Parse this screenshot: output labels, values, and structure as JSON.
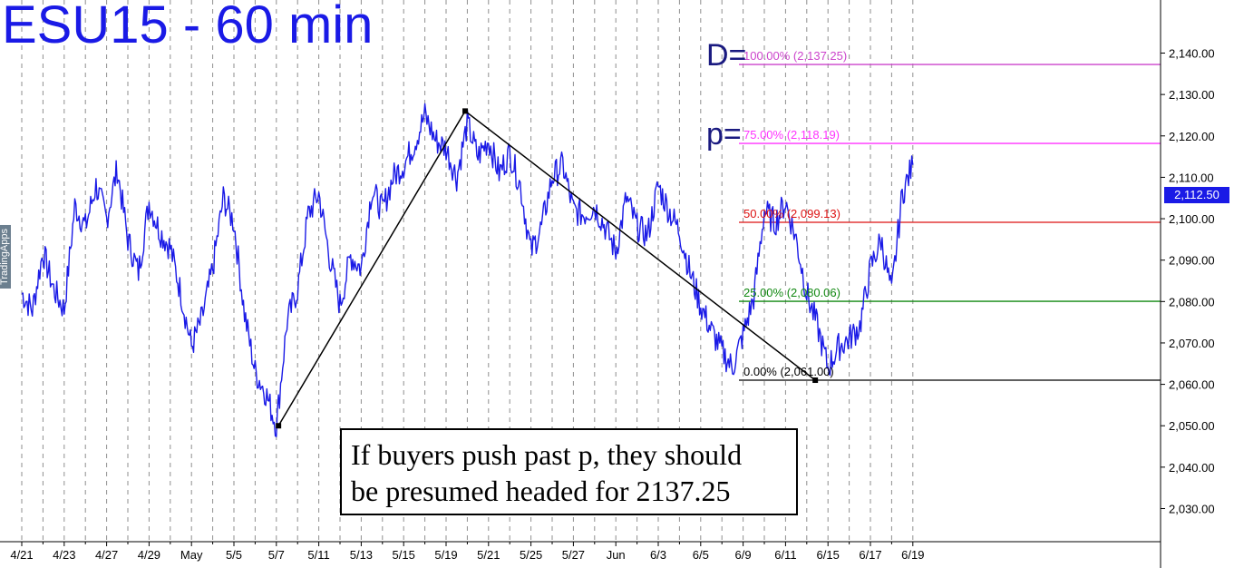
{
  "title": "ESU15 - 60 min",
  "logo_text": "TradingApps",
  "note": {
    "line1": "If buyers push past p, they should",
    "line2": "be presumed headed for 2137.25"
  },
  "last_price": "2,112.50",
  "chart_data": {
    "type": "line",
    "title": "ESU15 - 60 min",
    "ylim": [
      2022,
      2148
    ],
    "grid": "vertical-dashed",
    "y_ticks": [
      "2,030.00",
      "2,040.00",
      "2,050.00",
      "2,060.00",
      "2,070.00",
      "2,080.00",
      "2,090.00",
      "2,100.00",
      "2,110.00",
      "2,120.00",
      "2,130.00",
      "2,140.00"
    ],
    "y_tick_values": [
      2030,
      2040,
      2050,
      2060,
      2070,
      2080,
      2090,
      2100,
      2110,
      2120,
      2130,
      2140
    ],
    "x_ticks": [
      "4/21",
      "4/23",
      "4/27",
      "4/29",
      "May",
      "5/5",
      "5/7",
      "5/11",
      "5/13",
      "5/15",
      "5/19",
      "5/21",
      "5/25",
      "5/27",
      "Jun",
      "6/3",
      "6/5",
      "6/9",
      "6/11",
      "6/15",
      "6/17",
      "6/19"
    ],
    "x_tick_index": [
      0,
      2,
      4,
      6,
      8,
      10,
      12,
      14,
      16,
      18,
      20,
      22,
      24,
      26,
      28,
      30,
      32,
      34,
      36,
      38,
      40,
      42
    ],
    "series": [
      {
        "color": "#1a1ae6",
        "x": [
          0,
          0.5,
          1,
          1.5,
          2,
          2.5,
          3,
          3.5,
          4,
          4.5,
          5,
          5.5,
          6,
          6.5,
          7,
          7.5,
          8,
          8.5,
          9,
          9.5,
          10,
          10.5,
          11,
          11.5,
          12,
          12.5,
          13,
          13.5,
          14,
          14.5,
          15,
          15.5,
          16,
          16.5,
          17,
          17.5,
          18,
          18.5,
          19,
          19.5,
          20,
          20.5,
          21,
          21.5,
          22,
          22.5,
          23,
          23.5,
          24,
          24.5,
          25,
          25.5,
          26,
          26.5,
          27,
          27.5,
          28,
          28.5,
          29,
          29.5,
          30,
          30.5,
          31,
          31.5,
          32,
          32.5,
          33,
          33.5,
          34,
          34.5,
          35,
          35.5,
          36,
          36.5,
          37,
          37.5,
          38,
          38.5,
          39,
          39.5,
          40,
          40.5,
          41,
          41.5,
          42
        ],
        "values": [
          2082,
          2078,
          2092,
          2083,
          2078,
          2103,
          2098,
          2108,
          2100,
          2112,
          2095,
          2087,
          2104,
          2097,
          2093,
          2082,
          2069,
          2076,
          2088,
          2105,
          2099,
          2077,
          2063,
          2058,
          2050,
          2075,
          2083,
          2101,
          2106,
          2091,
          2079,
          2091,
          2088,
          2107,
          2102,
          2110,
          2113,
          2118,
          2125,
          2119,
          2117,
          2110,
          2123,
          2115,
          2119,
          2111,
          2116,
          2108,
          2092,
          2098,
          2110,
          2113,
          2102,
          2101,
          2103,
          2098,
          2092,
          2105,
          2098,
          2096,
          2108,
          2102,
          2097,
          2087,
          2079,
          2073,
          2068,
          2064,
          2072,
          2081,
          2102,
          2099,
          2104,
          2095,
          2082,
          2074,
          2064,
          2069,
          2071,
          2074,
          2088,
          2095,
          2082,
          2106,
          2113
        ]
      }
    ],
    "zigzag": [
      {
        "x": 12.1,
        "y": 2050
      },
      {
        "x": 20.9,
        "y": 2126
      },
      {
        "x": 37.4,
        "y": 2061
      }
    ],
    "fib_levels": [
      {
        "tag": "D=",
        "label": "100.00% (2,137.25)",
        "value": 2137.25,
        "color": "#cc44cc"
      },
      {
        "tag": "p=",
        "label": "75.00% (2,118.19)",
        "value": 2118.19,
        "color": "#ff33ff"
      },
      {
        "tag": "",
        "label": "50.00% (2,099.13)",
        "value": 2099.13,
        "color": "#dd1111"
      },
      {
        "tag": "",
        "label": "25.00% (2,080.06)",
        "value": 2080.06,
        "color": "#118811"
      },
      {
        "tag": "",
        "label": "0.00% (2,061.00)",
        "value": 2061.0,
        "color": "#000000"
      }
    ]
  }
}
